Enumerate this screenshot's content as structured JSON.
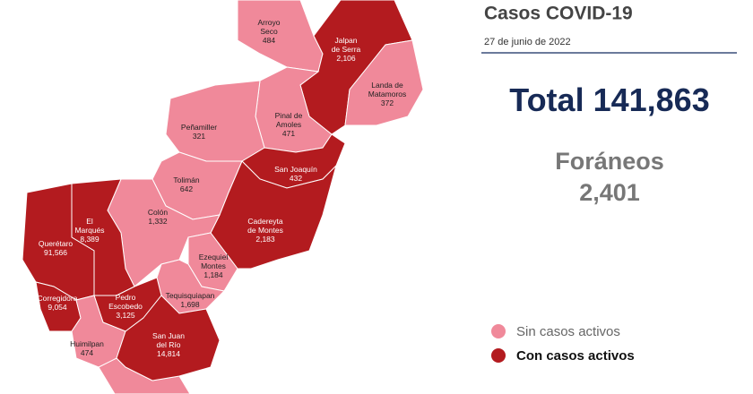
{
  "header": {
    "title": "Casos COVID-19",
    "date": "27 de junio de 2022"
  },
  "summary": {
    "total_label": "Total",
    "total": "141,863",
    "foraneos_label": "Foráneos",
    "foraneos": "2,401"
  },
  "legend": [
    {
      "label": "Sin casos activos",
      "color": "#f0899a"
    },
    {
      "label": "Con casos activos",
      "color": "#b31b1f"
    }
  ],
  "municipalities": [
    {
      "name": [
        "Arroyo",
        "Seco"
      ],
      "cases": "484",
      "active": false
    },
    {
      "name": [
        "Jalpan",
        "de Serra"
      ],
      "cases": "2,106",
      "active": true
    },
    {
      "name": [
        "Landa de",
        "Matamoros"
      ],
      "cases": "372",
      "active": false
    },
    {
      "name": [
        "Pinal de",
        "Amoles"
      ],
      "cases": "471",
      "active": false
    },
    {
      "name": [
        "Peñamiller"
      ],
      "cases": "321",
      "active": false
    },
    {
      "name": [
        "San Joaquín"
      ],
      "cases": "432",
      "active": true
    },
    {
      "name": [
        "Tolimán"
      ],
      "cases": "642",
      "active": false
    },
    {
      "name": [
        "Cadereyta",
        "de Montes"
      ],
      "cases": "2,183",
      "active": true
    },
    {
      "name": [
        "Colón"
      ],
      "cases": "1,332",
      "active": false
    },
    {
      "name": [
        "El",
        "Marqués"
      ],
      "cases": "8,389",
      "active": true
    },
    {
      "name": [
        "Querétaro"
      ],
      "cases": "91,566",
      "active": true
    },
    {
      "name": [
        "Corregidora"
      ],
      "cases": "9,054",
      "active": true
    },
    {
      "name": [
        "Ezequiel",
        "Montes"
      ],
      "cases": "1,184",
      "active": false
    },
    {
      "name": [
        "Tequisquiapan"
      ],
      "cases": "1,698",
      "active": false
    },
    {
      "name": [
        "Pedro",
        "Escobedo"
      ],
      "cases": "3,125",
      "active": true
    },
    {
      "name": [
        "Huimilpan"
      ],
      "cases": "474",
      "active": false
    },
    {
      "name": [
        "San Juan",
        "del Río"
      ],
      "cases": "14,814",
      "active": true
    }
  ]
}
